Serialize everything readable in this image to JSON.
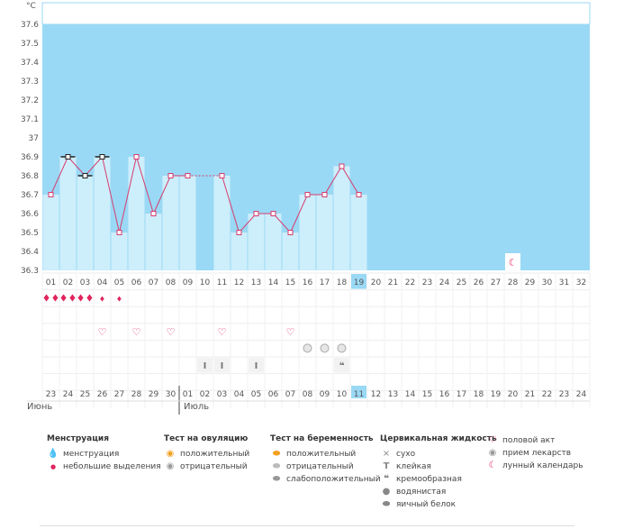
{
  "chart_data": {
    "type": "line",
    "yunit": "°C",
    "yticks": [
      "37.6",
      "37.5",
      "37.4",
      "37.3",
      "37.2",
      "37.1",
      "37",
      "36.9",
      "36.8",
      "36.7",
      "36.6",
      "36.5",
      "36.4",
      "36.3"
    ],
    "ylim": [
      36.3,
      37.6
    ],
    "cycle_days": [
      "01",
      "02",
      "03",
      "04",
      "05",
      "06",
      "07",
      "08",
      "09",
      "10",
      "11",
      "12",
      "13",
      "14",
      "15",
      "16",
      "17",
      "18",
      "19",
      "20",
      "21",
      "22",
      "23",
      "24",
      "25",
      "26",
      "27",
      "28",
      "29",
      "30",
      "31",
      "32"
    ],
    "current_day": "19",
    "temperatures": [
      36.7,
      36.9,
      36.8,
      36.9,
      36.5,
      36.9,
      36.6,
      36.8,
      36.8,
      null,
      36.8,
      36.5,
      36.6,
      36.6,
      36.5,
      36.7,
      36.7,
      36.85,
      36.7
    ],
    "marker_types": [
      "square",
      "bar",
      "bar",
      "bar",
      "square",
      "square",
      "square",
      "square",
      "square",
      "none",
      "square",
      "square",
      "square",
      "square",
      "square",
      "square",
      "square",
      "square",
      "square"
    ],
    "dates": [
      "23",
      "24",
      "25",
      "26",
      "27",
      "28",
      "29",
      "30",
      "01",
      "02",
      "03",
      "04",
      "05",
      "06",
      "07",
      "08",
      "09",
      "10",
      "11",
      "12",
      "13",
      "14",
      "15",
      "16",
      "17",
      "18",
      "19",
      "20",
      "21",
      "22",
      "23",
      "24"
    ],
    "highlight_dates": [
      "25",
      "26",
      "02",
      "03",
      "09",
      "10",
      "16",
      "17",
      "23",
      "24"
    ],
    "months": [
      "Июнь",
      "Июль"
    ],
    "rows": {
      "menstruation": {
        "1": "heavy",
        "2": "heavy",
        "3": "heavy",
        "4": "light",
        "5": "light"
      },
      "intercourse": [
        4,
        6,
        8,
        11,
        15
      ],
      "pregnancy_test": [
        16,
        17,
        18
      ],
      "cervical": {
        "10": "sticky",
        "11": "sticky",
        "13": "sticky",
        "18": "creamy"
      },
      "lunar_day": 28
    }
  },
  "colors": {
    "sky": "#9ad9f5",
    "bar": "#cdeefb",
    "line": "#d63c6e",
    "accent": "#e0245e"
  },
  "legend": {
    "menstruation": {
      "title": "Менструация",
      "items": [
        {
          "icon": "drop-heavy",
          "label": "менструация"
        },
        {
          "icon": "drop-light",
          "label": "небольшие выделения"
        }
      ]
    },
    "ovulation": {
      "title": "Тест на овуляцию",
      "items": [
        {
          "icon": "circle-orange",
          "label": "положительный"
        },
        {
          "icon": "circle-grey",
          "label": "отрицательный"
        }
      ]
    },
    "pregnancy": {
      "title": "Тест на беременность",
      "items": [
        {
          "icon": "oval-orange",
          "label": "положительный"
        },
        {
          "icon": "oval-light",
          "label": "отрицательный"
        },
        {
          "icon": "oval-swirl",
          "label": "слабоположительный"
        }
      ]
    },
    "cervical": {
      "title": "Цервикальная жидкость",
      "items": [
        {
          "icon": "cross",
          "label": "сухо"
        },
        {
          "icon": "t-bar",
          "label": "клейкая"
        },
        {
          "icon": "comma",
          "label": "кремообразная"
        },
        {
          "icon": "drop-grey",
          "label": "водянистая"
        },
        {
          "icon": "egg",
          "label": "яичный белок"
        }
      ]
    },
    "other": {
      "items": [
        {
          "icon": "heart",
          "label": "половой акт"
        },
        {
          "icon": "pill",
          "label": "прием лекарств"
        },
        {
          "icon": "moon",
          "label": "лунный календарь"
        }
      ]
    }
  }
}
